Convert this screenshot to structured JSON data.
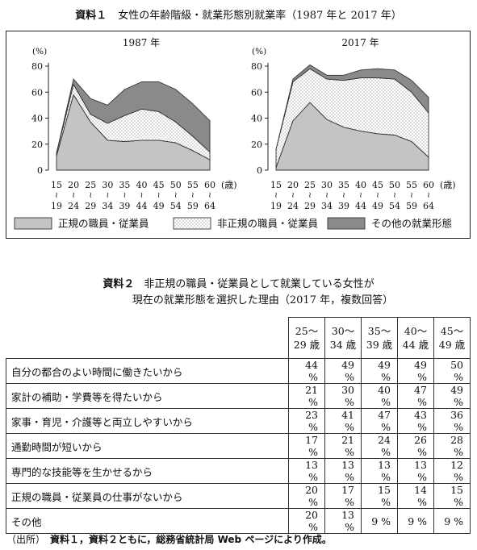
{
  "doc": {
    "material1_label": "資料１",
    "material1_title": "女性の年齢階級・就業形態別就業率（1987 年と 2017 年）",
    "material2_label": "資料２",
    "material2_title_line1": "非正規の職員・従業員として就業している女性が",
    "material2_title_line2": "現在の就業形態を選択した理由（2017 年，複数回答）",
    "source_label": "（出所）",
    "source_text": "資料１，資料２ともに，総務省統計局 Web ページにより作成。"
  },
  "chart_data": [
    {
      "type": "area",
      "stacked": true,
      "title": "1987 年",
      "ylabel": "(%)",
      "xlabel": "(歳)",
      "ylim": [
        0,
        80
      ],
      "yticks": [
        0,
        20,
        40,
        60,
        80
      ],
      "x_top": [
        "15",
        "20",
        "25",
        "30",
        "35",
        "40",
        "45",
        "50",
        "55",
        "60"
      ],
      "x_bottom": [
        "19",
        "24",
        "29",
        "34",
        "39",
        "44",
        "49",
        "54",
        "59",
        "64"
      ],
      "series": [
        {
          "name": "正規の職員・従業員",
          "values": [
            11,
            58,
            37,
            23,
            22,
            23,
            23,
            21,
            15,
            8
          ]
        },
        {
          "name": "非正規の職員・従業員",
          "values": [
            2,
            8,
            6,
            13,
            20,
            24,
            22,
            16,
            11,
            6
          ]
        },
        {
          "name": "その他の就業形態",
          "values": [
            0,
            4,
            12,
            14,
            20,
            21,
            23,
            25,
            25,
            24
          ]
        }
      ]
    },
    {
      "type": "area",
      "stacked": true,
      "title": "2017 年",
      "ylabel": "(%)",
      "xlabel": "(歳)",
      "ylim": [
        0,
        80
      ],
      "yticks": [
        0,
        20,
        40,
        60,
        80
      ],
      "x_top": [
        "15",
        "20",
        "25",
        "30",
        "35",
        "40",
        "45",
        "50",
        "55",
        "60"
      ],
      "x_bottom": [
        "19",
        "24",
        "29",
        "34",
        "39",
        "44",
        "49",
        "54",
        "59",
        "64"
      ],
      "series": [
        {
          "name": "正規の職員・従業員",
          "values": [
            2,
            38,
            52,
            39,
            33,
            30,
            28,
            27,
            22,
            10
          ]
        },
        {
          "name": "非正規の職員・従業員",
          "values": [
            14,
            30,
            26,
            31,
            36,
            41,
            43,
            43,
            38,
            34
          ]
        },
        {
          "name": "その他の就業形態",
          "values": [
            0,
            2,
            3,
            3,
            4,
            6,
            7,
            7,
            9,
            12
          ]
        }
      ]
    },
    {
      "type": "table",
      "columns": [
        {
          "top": "25～",
          "bottom": "29 歳"
        },
        {
          "top": "30～",
          "bottom": "34 歳"
        },
        {
          "top": "35～",
          "bottom": "39 歳"
        },
        {
          "top": "40～",
          "bottom": "44 歳"
        },
        {
          "top": "45～",
          "bottom": "49 歳"
        }
      ],
      "rows": [
        {
          "label": "自分の都合のよい時間に働きたいから",
          "values": [
            "44 %",
            "49 %",
            "49 %",
            "49 %",
            "50 %"
          ]
        },
        {
          "label": "家計の補助・学費等を得たいから",
          "values": [
            "21 %",
            "30 %",
            "40 %",
            "47 %",
            "49 %"
          ]
        },
        {
          "label": "家事・育児・介護等と両立しやすいから",
          "values": [
            "23 %",
            "41 %",
            "47 %",
            "43 %",
            "36 %"
          ]
        },
        {
          "label": "通勤時間が短いから",
          "values": [
            "17 %",
            "21 %",
            "24 %",
            "26 %",
            "28 %"
          ]
        },
        {
          "label": "専門的な技能等を生かせるから",
          "values": [
            "13 %",
            "13 %",
            "13 %",
            "13 %",
            "12 %"
          ]
        },
        {
          "label": "正規の職員・従業員の仕事がないから",
          "values": [
            "20 %",
            "17 %",
            "15 %",
            "14 %",
            "15 %"
          ]
        },
        {
          "label": "その他",
          "values": [
            "20 %",
            "13 %",
            "9 %",
            "9 %",
            "9 %"
          ]
        }
      ]
    }
  ],
  "style": {
    "regular_color": "#c4c4c4",
    "nonregular_dot_color": "#888888",
    "other_color": "#8a8a8a",
    "line_color": "#333333"
  }
}
